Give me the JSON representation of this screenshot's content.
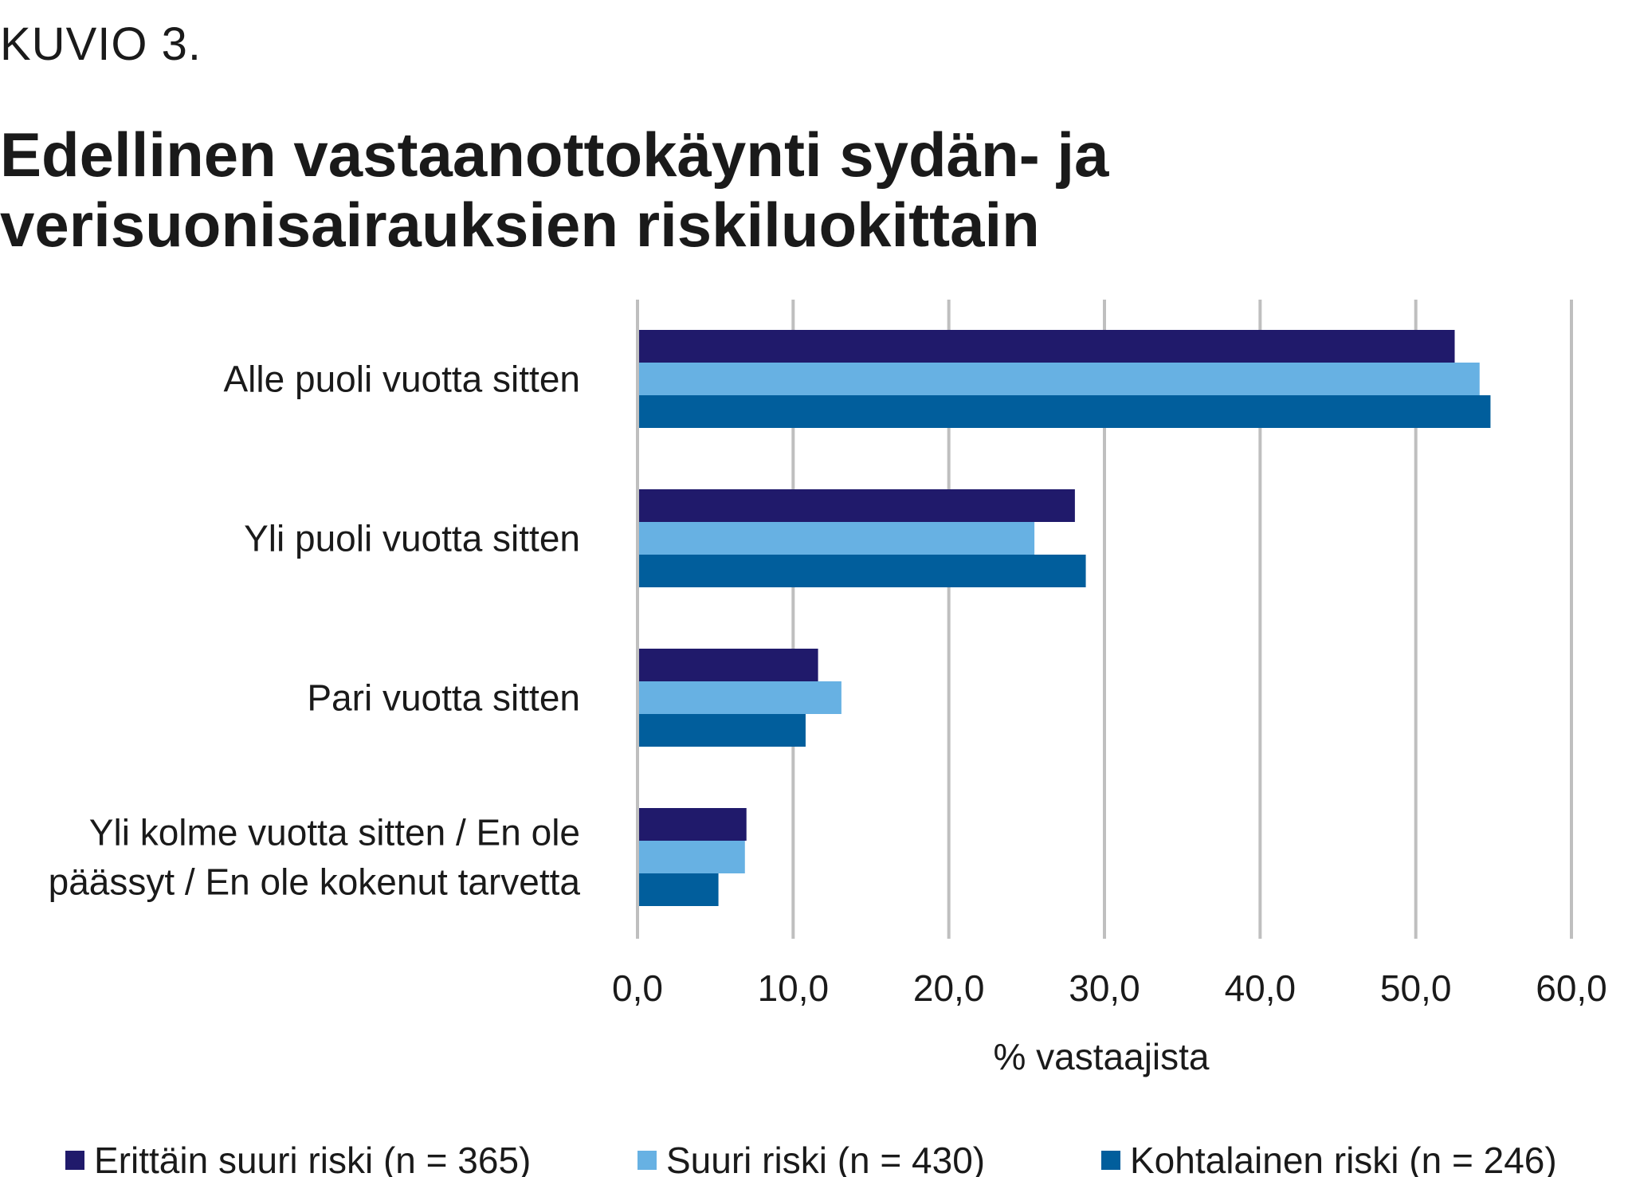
{
  "figure_label": "KUVIO 3.",
  "chart_data": {
    "type": "bar",
    "orientation": "horizontal",
    "title": "Edellinen vastaanottokäynti sydän- ja verisuonisairauksien riskiluokittain",
    "xlabel": "% vastaajista",
    "ylabel": "",
    "xlim": [
      0,
      60
    ],
    "xticks": [
      "0,0",
      "10,0",
      "20,0",
      "30,0",
      "40,0",
      "50,0",
      "60,0"
    ],
    "grid": true,
    "legend_position": "bottom",
    "categories": [
      [
        "Alle puoli vuotta sitten"
      ],
      [
        "Yli puoli vuotta sitten"
      ],
      [
        "Pari vuotta sitten"
      ],
      [
        "Yli kolme vuotta sitten / En ole",
        "päässyt / En ole kokenut tarvetta"
      ]
    ],
    "series": [
      {
        "name": "Erittäin suuri riski (n = 365)",
        "color": "#201a6b",
        "values": [
          52.5,
          28.1,
          11.6,
          7.0
        ]
      },
      {
        "name": "Suuri riski (n = 430)",
        "color": "#67b1e3",
        "values": [
          54.1,
          25.5,
          13.1,
          6.9
        ]
      },
      {
        "name": "Kohtalainen riski (n = 246)",
        "color": "#015e9c",
        "values": [
          54.8,
          28.8,
          10.8,
          5.2
        ]
      }
    ]
  }
}
